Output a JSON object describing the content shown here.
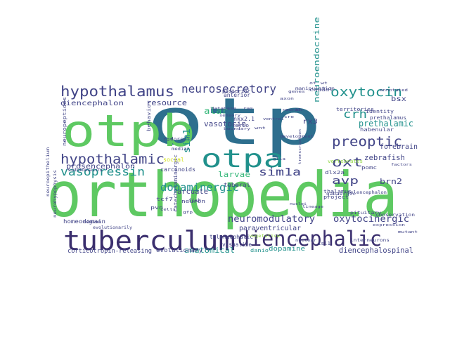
{
  "palette": {
    "dark_purple": "#3b2f6e",
    "indigo": "#414487",
    "blue": "#2e6f8e",
    "teal": "#21918c",
    "green": "#35b779",
    "light_green": "#5ec962",
    "lime": "#90d743",
    "yellow": "#d2e21b"
  },
  "words": [
    {
      "id": "orthopedia",
      "text": "orthopedia",
      "tone": "light_green",
      "weight": 1.0
    },
    {
      "id": "otp",
      "text": "otp",
      "tone": "blue",
      "weight": 0.95
    },
    {
      "id": "otpb",
      "text": "otpb",
      "tone": "light_green",
      "weight": 0.8
    },
    {
      "id": "otpa",
      "text": "otpa",
      "tone": "teal",
      "weight": 0.55
    },
    {
      "id": "tuberculum",
      "text": "tuberculum",
      "tone": "dark_purple",
      "weight": 0.6
    },
    {
      "id": "diencephalic",
      "text": "diencephalic",
      "tone": "dark_purple",
      "weight": 0.5
    },
    {
      "id": "hypothalamus",
      "text": "hypothalamus",
      "tone": "indigo",
      "weight": 0.35
    },
    {
      "id": "neurosecretory",
      "text": "neurosecretory",
      "tone": "indigo",
      "weight": 0.3
    },
    {
      "id": "oxytocin",
      "text": "oxytocin",
      "tone": "teal",
      "weight": 0.35
    },
    {
      "id": "hypothalamic",
      "text": "hypothalamic",
      "tone": "indigo",
      "weight": 0.35
    },
    {
      "id": "preoptic",
      "text": "preoptic",
      "tone": "indigo",
      "weight": 0.35
    },
    {
      "id": "crh",
      "text": "crh",
      "tone": "teal",
      "weight": 0.3
    },
    {
      "id": "oxt",
      "text": "oxt",
      "tone": "indigo",
      "weight": 0.3
    },
    {
      "id": "vasopressin",
      "text": "vasopressin",
      "tone": "teal",
      "weight": 0.3
    },
    {
      "id": "dopaminergic",
      "text": "dopaminergic",
      "tone": "teal",
      "weight": 0.3
    },
    {
      "id": "neuroendocrine",
      "text": "neuroendocrine",
      "tone": "teal",
      "weight": 0.22
    },
    {
      "id": "sim1a",
      "text": "sim1a",
      "tone": "indigo",
      "weight": 0.25
    },
    {
      "id": "sim1",
      "text": "sim1",
      "tone": "teal",
      "weight": 0.25
    },
    {
      "id": "avp",
      "text": "avp",
      "tone": "indigo",
      "weight": 0.25
    },
    {
      "id": "neuromodulatory",
      "text": "neuromodulatory",
      "tone": "indigo",
      "weight": 0.22
    },
    {
      "id": "oxytocinergic",
      "text": "oxytocinergic",
      "tone": "indigo",
      "weight": 0.22
    },
    {
      "id": "diencephalospinal",
      "text": "diencephalospinal",
      "tone": "indigo",
      "weight": 0.2
    },
    {
      "id": "anatomical",
      "text": "anatomical",
      "tone": "teal",
      "weight": 0.18
    },
    {
      "id": "corticotropin_releasing",
      "text": "corticotropin-releasing",
      "tone": "indigo",
      "weight": 0.15
    },
    {
      "id": "diencephalon",
      "text": "diencephalon",
      "tone": "indigo",
      "weight": 0.15
    },
    {
      "id": "prosencephalon",
      "text": "prosencephalon",
      "tone": "indigo",
      "weight": 0.15
    },
    {
      "id": "resource",
      "text": "resource",
      "tone": "indigo",
      "weight": 0.15
    },
    {
      "id": "alar",
      "text": "alar",
      "tone": "green",
      "weight": 0.15
    },
    {
      "id": "vasotocin",
      "text": "vasotocin",
      "tone": "indigo",
      "weight": 0.15
    },
    {
      "id": "larvae",
      "text": "larvae",
      "tone": "green",
      "weight": 0.17
    },
    {
      "id": "prethalamic",
      "text": "prethalamic",
      "tone": "teal",
      "weight": 0.15
    },
    {
      "id": "bsx",
      "text": "bsx",
      "tone": "indigo",
      "weight": 0.15
    },
    {
      "id": "rx3",
      "text": "rx3",
      "tone": "indigo",
      "weight": 0.15
    },
    {
      "id": "zebrafish",
      "text": "zebrafish",
      "tone": "indigo",
      "weight": 0.14
    },
    {
      "id": "brn2",
      "text": "brn2",
      "tone": "indigo",
      "weight": 0.13
    },
    {
      "id": "forebrain",
      "text": "forebrain",
      "tone": "indigo",
      "weight": 0.13
    },
    {
      "id": "paraventricular",
      "text": "paraventricular",
      "tone": "indigo",
      "weight": 0.13
    },
    {
      "id": "arcuate",
      "text": "arcuate",
      "tone": "indigo",
      "weight": 0.13
    },
    {
      "id": "dopamine",
      "text": "dopamine",
      "tone": "teal",
      "weight": 0.12
    },
    {
      "id": "evolutionary",
      "text": "evolutionary",
      "tone": "indigo",
      "weight": 0.1
    },
    {
      "id": "homeodomain",
      "text": "homeodomain",
      "tone": "indigo",
      "weight": 0.1
    },
    {
      "id": "tuberal",
      "text": "tuberal",
      "tone": "indigo",
      "weight": 0.1
    },
    {
      "id": "carcinoids",
      "text": "carcinoids",
      "tone": "indigo",
      "weight": 0.1
    },
    {
      "id": "telencephalic",
      "text": "telencephalic",
      "tone": "indigo",
      "weight": 0.1
    },
    {
      "id": "visualize",
      "text": "visualize",
      "tone": "indigo",
      "weight": 0.1
    },
    {
      "id": "pomc",
      "text": "pomc",
      "tone": "indigo",
      "weight": 0.09
    },
    {
      "id": "thalamus",
      "text": "thalamus",
      "tone": "indigo",
      "weight": 0.09
    },
    {
      "id": "habenular",
      "text": "habenular",
      "tone": "indigo",
      "weight": 0.09
    },
    {
      "id": "project",
      "text": "project",
      "tone": "indigo",
      "weight": 0.09
    },
    {
      "id": "anterior",
      "text": "anterior",
      "tone": "indigo",
      "weight": 0.09
    },
    {
      "id": "posterior",
      "text": "posterior",
      "tone": "indigo",
      "weight": 0.09
    },
    {
      "id": "neuron",
      "text": "neuron",
      "tone": "indigo",
      "weight": 0.09
    },
    {
      "id": "caudal",
      "text": "caudal",
      "tone": "indigo",
      "weight": 0.08
    },
    {
      "id": "territories",
      "text": "territories",
      "tone": "indigo",
      "weight": 0.08
    },
    {
      "id": "identity",
      "text": "identity",
      "tone": "indigo",
      "weight": 0.08
    },
    {
      "id": "prethalamus",
      "text": "prethalamus",
      "tone": "indigo",
      "weight": 0.08
    },
    {
      "id": "nkx2_1",
      "text": "nkx2.1",
      "tone": "indigo",
      "weight": 0.08
    },
    {
      "id": "rerio",
      "text": "rerio",
      "tone": "indigo",
      "weight": 0.08
    },
    {
      "id": "dlx2a",
      "text": "dlx2a",
      "tone": "indigo",
      "weight": 0.08
    },
    {
      "id": "pvn",
      "text": "pvn",
      "tone": "indigo",
      "weight": 0.08
    },
    {
      "id": "danio",
      "text": "danio",
      "tone": "teal",
      "weight": 0.08
    },
    {
      "id": "tcf7",
      "text": "tcf7",
      "tone": "indigo",
      "weight": 0.08
    },
    {
      "id": "vertebrates",
      "text": "vertebrates",
      "tone": "lime",
      "weight": 0.08
    },
    {
      "id": "interneurons",
      "text": "interneurons",
      "tone": "indigo",
      "weight": 0.07
    },
    {
      "id": "neuropeptides",
      "text": "neuropeptides",
      "tone": "indigo",
      "weight": 0.07
    },
    {
      "id": "catecholaminergic",
      "text": "catecholaminergic",
      "tone": "indigo",
      "weight": 0.07
    },
    {
      "id": "behavior",
      "text": "behavior",
      "tone": "indigo",
      "weight": 0.07
    },
    {
      "id": "fish",
      "text": "fish",
      "tone": "indigo",
      "weight": 0.07
    },
    {
      "id": "social",
      "text": "social",
      "tone": "yellow",
      "weight": 0.08
    },
    {
      "id": "isl1",
      "text": "isl1",
      "tone": "indigo",
      "weight": 0.07
    },
    {
      "id": "pituitary",
      "text": "pituitary",
      "tone": "indigo",
      "weight": 0.07
    },
    {
      "id": "vegetative",
      "text": "vegetative",
      "tone": "lime",
      "weight": 0.07
    },
    {
      "id": "neurohypophysis",
      "text": "neurohypophysis",
      "tone": "indigo",
      "weight": 0.06
    },
    {
      "id": "neuroepithelium",
      "text": "neuroepithelium",
      "tone": "indigo",
      "weight": 0.06
    },
    {
      "id": "subdomains",
      "text": "subdomains",
      "tone": "indigo",
      "weight": 0.06
    },
    {
      "id": "evolutionarily",
      "text": "evolutionarily",
      "tone": "indigo",
      "weight": 0.06
    },
    {
      "id": "manipulation",
      "text": "manipulation",
      "tone": "indigo",
      "weight": 0.06
    },
    {
      "id": "sensory",
      "text": "sensory",
      "tone": "indigo",
      "weight": 0.06
    },
    {
      "id": "boundary",
      "text": "boundary",
      "tone": "indigo",
      "weight": 0.06
    },
    {
      "id": "ventral",
      "text": "ventral",
      "tone": "indigo",
      "weight": 0.06
    },
    {
      "id": "dorsal",
      "text": "dorsal",
      "tone": "indigo",
      "weight": 0.06
    },
    {
      "id": "medial",
      "text": "medial",
      "tone": "indigo",
      "weight": 0.06
    },
    {
      "id": "region",
      "text": "region",
      "tone": "indigo",
      "weight": 0.06
    },
    {
      "id": "genes",
      "text": "genes",
      "tone": "indigo",
      "weight": 0.06
    },
    {
      "id": "cells",
      "text": "cells",
      "tone": "indigo",
      "weight": 0.06
    },
    {
      "id": "nuclei",
      "text": "nuclei",
      "tone": "indigo",
      "weight": 0.06
    },
    {
      "id": "development",
      "text": "development",
      "tone": "indigo",
      "weight": 0.06
    },
    {
      "id": "conservation",
      "text": "conservation",
      "tone": "indigo",
      "weight": 0.06
    },
    {
      "id": "gabaergic",
      "text": "gabaergic",
      "tone": "indigo",
      "weight": 0.06
    },
    {
      "id": "telencephalon",
      "text": "telencephalon",
      "tone": "indigo",
      "weight": 0.06
    },
    {
      "id": "lineage",
      "text": "lineage",
      "tone": "indigo",
      "weight": 0.06
    },
    {
      "id": "expression",
      "text": "expression",
      "tone": "indigo",
      "weight": 0.06
    },
    {
      "id": "database",
      "text": "database",
      "tone": "indigo",
      "weight": 0.06
    },
    {
      "id": "ras",
      "text": "ras",
      "tone": "indigo",
      "weight": 0.06
    },
    {
      "id": "wnt",
      "text": "wnt",
      "tone": "indigo",
      "weight": 0.06
    },
    {
      "id": "cre",
      "text": "cre",
      "tone": "indigo",
      "weight": 0.06
    },
    {
      "id": "gfp",
      "text": "gfp",
      "tone": "indigo",
      "weight": 0.06
    },
    {
      "id": "fgf",
      "text": "fgf",
      "tone": "indigo",
      "weight": 0.06
    },
    {
      "id": "hh",
      "text": "hh",
      "tone": "indigo",
      "weight": 0.06
    },
    {
      "id": "axon",
      "text": "axon",
      "tone": "indigo",
      "weight": 0.06
    },
    {
      "id": "glia",
      "text": "glia",
      "tone": "indigo",
      "weight": 0.06
    },
    {
      "id": "ot",
      "text": "ot",
      "tone": "indigo",
      "weight": 0.06
    },
    {
      "id": "wt",
      "text": "wt",
      "tone": "indigo",
      "weight": 0.06
    },
    {
      "id": "nuclear",
      "text": "nuclear",
      "tone": "indigo",
      "weight": 0.06
    },
    {
      "id": "neural",
      "text": "neural",
      "tone": "indigo",
      "weight": 0.06
    },
    {
      "id": "transcription",
      "text": "transcription",
      "tone": "indigo",
      "weight": 0.06
    },
    {
      "id": "factors",
      "text": "factors",
      "tone": "indigo",
      "weight": 0.06
    },
    {
      "id": "annotated",
      "text": "annotated",
      "tone": "indigo",
      "weight": 0.06
    },
    {
      "id": "mutant",
      "text": "mutant",
      "tone": "indigo",
      "weight": 0.06
    }
  ]
}
